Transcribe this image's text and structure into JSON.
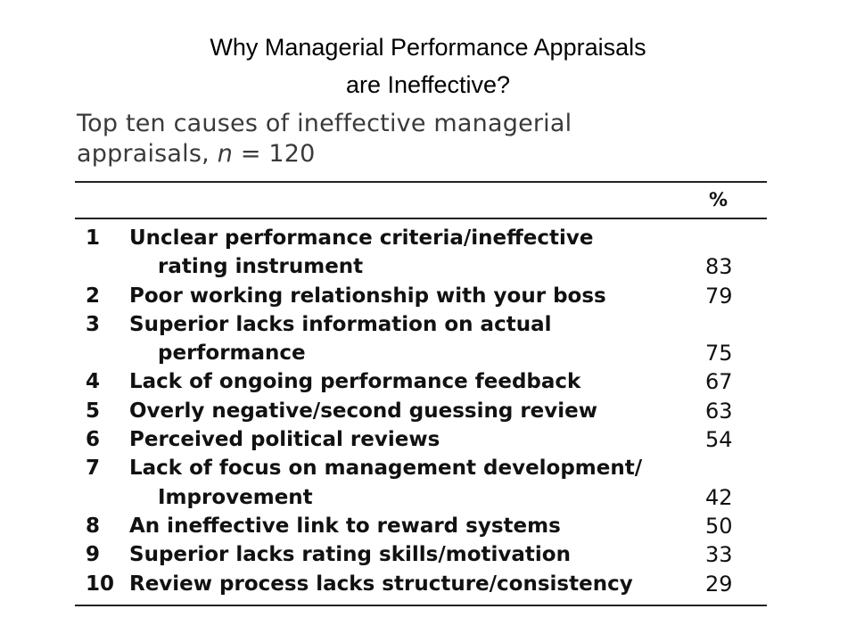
{
  "title": {
    "line1": "Why Managerial Performance Appraisals",
    "line2": "are Ineffective?"
  },
  "caption": {
    "line1": "Top ten causes of ineffective managerial",
    "line2_prefix": "appraisals, ",
    "line2_italic": "n",
    "line2_suffix": " = 120"
  },
  "table": {
    "column_header": "%",
    "rows": [
      {
        "rank": "1",
        "lines": [
          "Unclear performance criteria/ineffective",
          "rating instrument"
        ],
        "percent": "83"
      },
      {
        "rank": "2",
        "lines": [
          "Poor working relationship with your boss"
        ],
        "percent": "79"
      },
      {
        "rank": "3",
        "lines": [
          "Superior lacks information on actual",
          "performance"
        ],
        "percent": "75"
      },
      {
        "rank": "4",
        "lines": [
          "Lack of ongoing performance feedback"
        ],
        "percent": "67"
      },
      {
        "rank": "5",
        "lines": [
          "Overly negative/second guessing review"
        ],
        "percent": "63"
      },
      {
        "rank": "6",
        "lines": [
          "Perceived political reviews"
        ],
        "percent": "54"
      },
      {
        "rank": "7",
        "lines": [
          "Lack of focus on management development/",
          "Improvement"
        ],
        "percent": "42"
      },
      {
        "rank": "8",
        "lines": [
          "An ineffective link to reward systems"
        ],
        "percent": "50"
      },
      {
        "rank": "9",
        "lines": [
          "Superior lacks rating skills/motivation"
        ],
        "percent": "33"
      },
      {
        "rank": "10",
        "lines": [
          "Review process lacks structure/consistency"
        ],
        "percent": "29"
      }
    ]
  }
}
